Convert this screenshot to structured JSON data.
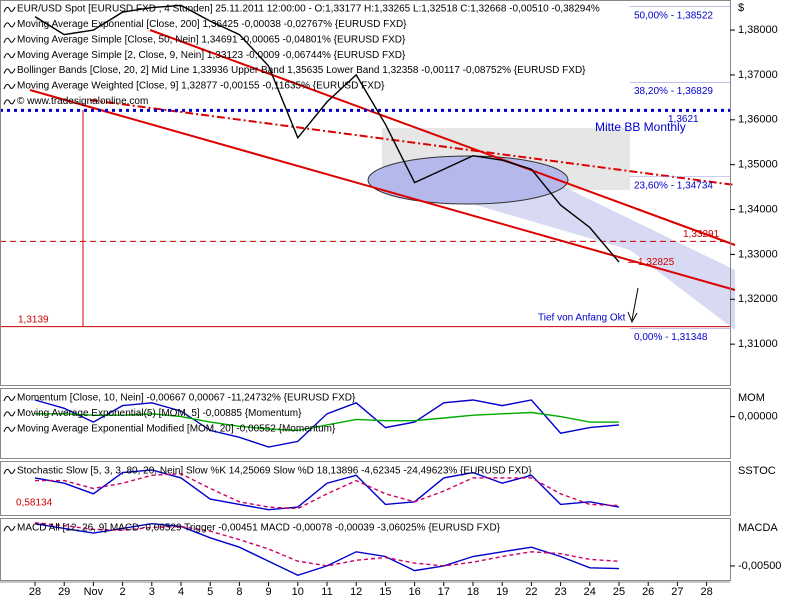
{
  "chart_data": [
    {
      "type": "line",
      "currency": "$",
      "legend_texts": [
        "EUR/USD Spot [EURUSD FXD , 4 Stunden] 25.11.2011 12:00:00 - O:1,33177 H:1,33265 L:1,32518 C:1,32668 -0,00510 -0,38294%",
        "Moving Average Exponential [Close, 200] 1,36425 -0,00038 -0,02767% {EURUSD FXD}",
        "Moving Average Simple [Close, 50, Nein] 1,34691 -0,00065 -0,04801% {EURUSD FXD}",
        "Moving Average Simple [2, Close, 9, Nein] 1,33123 -0,0009 -0,06744% {EURUSD FXD}",
        "Bollinger Bands [Close, 20, 2] Mid Line 1,33936 Upper Band 1,35635 Lower Band 1,32358 -0,00117 -0,08752% {EURUSD FXD}",
        "Moving Average Weighted [Close, 9] 1,32877 -0,00155 -0,11635% {EURUSD FXD}",
        "© www.tradesignalonline.com"
      ],
      "categories": [
        "28",
        "29",
        "Nov",
        "2",
        "3",
        "4",
        "5",
        "8",
        "9",
        "10",
        "11",
        "12",
        "15",
        "16",
        "17",
        "18",
        "19",
        "22",
        "23",
        "24",
        "25",
        "26",
        "27",
        "28"
      ],
      "series": [
        {
          "color": "#000000",
          "values": [
            1.383,
            1.379,
            1.38,
            1.384,
            1.385,
            1.3855,
            1.382,
            1.379,
            1.372,
            1.356,
            1.364,
            1.37,
            1.359,
            1.346,
            1.349,
            1.352,
            1.351,
            1.349,
            1.341,
            1.336,
            1.3283,
            null,
            null,
            null
          ]
        }
      ],
      "ylim": [
        1.3009,
        1.3867
      ],
      "yticks": [
        {
          "value": 1.38,
          "label": "1,38000"
        },
        {
          "value": 1.37,
          "label": "1,37000"
        },
        {
          "value": 1.36,
          "label": "1,36000"
        },
        {
          "value": 1.35,
          "label": "1,35000"
        },
        {
          "value": 1.34,
          "label": "1,34000"
        },
        {
          "value": 1.33,
          "label": "1,33000"
        },
        {
          "value": 1.32,
          "label": "1,32000"
        },
        {
          "value": 1.31,
          "label": "1,31000"
        }
      ],
      "levels": [
        {
          "value": 1.3139,
          "label": "1,3139",
          "color": "#cc0000",
          "style": "solid"
        },
        {
          "value": 1.3621,
          "label": "1,3621",
          "color": "#0000cc",
          "style": "dotted"
        },
        {
          "value": 1.33291,
          "label": "1,33291",
          "color": "#cc0000",
          "style": "dashed"
        }
      ],
      "fib_levels": [
        {
          "value": 1.38522,
          "label": "50,00% - 1,38522"
        },
        {
          "value": 1.36829,
          "label": "38,20% - 1,36829"
        },
        {
          "value": 1.34734,
          "label": "23,60% - 1,34734"
        },
        {
          "value": 1.31348,
          "label": "0,00% - 1,31348"
        }
      ],
      "last_price": {
        "value": 1.32825,
        "label": "1,32825",
        "color": "#cc0000"
      },
      "annotations": [
        {
          "text": "Mitte BB Monthly",
          "color": "#0000cc"
        },
        {
          "text": "Tief von Anfang Okt",
          "color": "#0000cc"
        }
      ]
    },
    {
      "type": "line",
      "axis_label": "MOM",
      "legend_texts": [
        "Momentum [Close, 10, Nein] -0,00667 0,00067 -11,24732% {EURUSD FXD}",
        "Moving Average Exponential(5) [MOM, 5] -0,00885 {Momentum}",
        "Moving Average Exponential Modified [MOM, 20] -0,00552 {Momentum}"
      ],
      "series": [
        {
          "color": "#0000cc",
          "values": [
            0.012,
            0.006,
            -0.004,
            0.008,
            0.01,
            0.004,
            -0.01,
            -0.015,
            -0.022,
            -0.018,
            0.002,
            0.01,
            -0.008,
            -0.004,
            0.01,
            0.012,
            0.008,
            0.012,
            -0.012,
            -0.008,
            -0.006,
            null,
            null,
            null
          ]
        },
        {
          "color": "#00aa00",
          "values": [
            0.002,
            0.002,
            0.001,
            0.001,
            0.002,
            0.0,
            -0.004,
            -0.007,
            -0.009,
            -0.01,
            -0.006,
            -0.002,
            -0.003,
            -0.003,
            -0.001,
            0.001,
            0.002,
            0.003,
            0.0,
            -0.004,
            -0.004,
            null,
            null,
            null
          ]
        }
      ],
      "ylim": [
        -0.03,
        0.02
      ],
      "yticks": [
        {
          "value": 0,
          "label": "0,00000"
        }
      ]
    },
    {
      "type": "line",
      "axis_label": "SSTOC",
      "legend_texts": [
        "Stochastic Slow [5, 3, 3, 80, 20, Nein] Slow %K 14,25069 Slow %D 18,13896 -4,62345 -24,49623% {EURUSD FXD}"
      ],
      "series": [
        {
          "color": "#0000cc",
          "values": [
            70,
            60,
            40,
            80,
            85,
            70,
            30,
            20,
            10,
            15,
            60,
            75,
            20,
            25,
            70,
            80,
            60,
            75,
            20,
            25,
            15,
            null,
            null,
            null
          ]
        },
        {
          "color": "#cc0066",
          "dashed": true,
          "values": [
            65,
            65,
            50,
            60,
            75,
            78,
            50,
            25,
            15,
            12,
            40,
            65,
            40,
            25,
            45,
            70,
            70,
            70,
            40,
            20,
            18,
            null,
            null,
            null
          ]
        }
      ],
      "ylim": [
        0,
        100
      ],
      "annotations": [
        {
          "text": "0,58134",
          "color": "#cc0000"
        }
      ]
    },
    {
      "type": "line",
      "axis_label": "MACDA",
      "legend_texts": [
        "MACD All [12, 26, 9] MACD -0,00529 Trigger -0,00451 MACD -0,00078 -0,00039 -3,06025% {EURUSD FXD}"
      ],
      "series": [
        {
          "color": "#0000cc",
          "values": [
            -0.0005,
            -0.001,
            -0.0015,
            -0.001,
            -0.0005,
            -0.0008,
            -0.002,
            -0.003,
            -0.0045,
            -0.006,
            -0.005,
            -0.0035,
            -0.004,
            -0.0055,
            -0.005,
            -0.004,
            -0.0035,
            -0.003,
            -0.004,
            -0.0052,
            -0.00529,
            null,
            null,
            null
          ]
        },
        {
          "color": "#cc0066",
          "dashed": true,
          "values": [
            -0.0004,
            -0.0007,
            -0.0011,
            -0.0012,
            -0.0009,
            -0.0008,
            -0.0013,
            -0.0022,
            -0.0032,
            -0.0045,
            -0.005,
            -0.0044,
            -0.0041,
            -0.0047,
            -0.005,
            -0.0046,
            -0.004,
            -0.0035,
            -0.0037,
            -0.0043,
            -0.00451,
            null,
            null,
            null
          ]
        }
      ],
      "ylim": [
        -0.0065,
        0
      ],
      "yticks": [
        {
          "value": -0.005,
          "label": "-0,00500"
        }
      ]
    }
  ]
}
